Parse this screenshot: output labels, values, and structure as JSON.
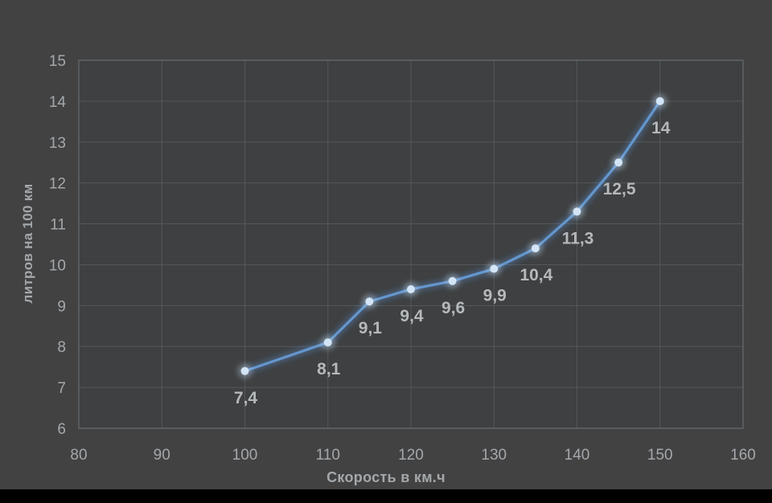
{
  "window": {
    "background": "#424243",
    "plot_fill": "#3e4041",
    "bottom_bar_color": "#000000"
  },
  "chart_data": {
    "type": "line",
    "title": "",
    "xlabel": "Скорость в км.ч",
    "ylabel": "литров на 100 км",
    "x": [
      100,
      110,
      115,
      120,
      125,
      130,
      135,
      140,
      145,
      150
    ],
    "values": [
      7.4,
      8.1,
      9.1,
      9.4,
      9.6,
      9.9,
      10.4,
      11.3,
      12.5,
      14
    ],
    "point_labels": [
      "7,4",
      "8,1",
      "9,1",
      "9,4",
      "9,6",
      "9,9",
      "10,4",
      "11,3",
      "12,5",
      "14"
    ],
    "xlim": [
      80,
      160
    ],
    "ylim": [
      6,
      15
    ],
    "x_ticks": [
      80,
      90,
      100,
      110,
      120,
      130,
      140,
      150,
      160
    ],
    "y_ticks": [
      6,
      7,
      8,
      9,
      10,
      11,
      12,
      13,
      14,
      15
    ],
    "grid": true,
    "legend": "none",
    "colors": {
      "line": "#6496cd",
      "line_glow": "#5b8fd0",
      "marker": "#d3e5f6",
      "grid": "#54585b",
      "plot_border": "#606467",
      "tick_text": "#a4a8ab",
      "label_text": "#b5b9bc",
      "axis_title_text": "#a4a8ab"
    }
  }
}
